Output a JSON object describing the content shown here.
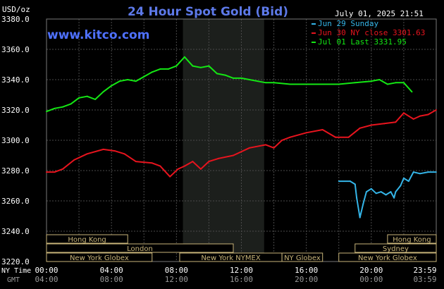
{
  "header": {
    "site": "www.kitco.com",
    "timestamp": "July 01, 2025 21:51",
    "currency_label": "USD/oz"
  },
  "chart_data": {
    "type": "line",
    "title": "24 Hour Spot Gold (Bid)",
    "ylim": [
      3220,
      3380
    ],
    "yticks": [
      "3380.0",
      "3360.0",
      "3340.0",
      "3320.0",
      "3300.0",
      "3280.0",
      "3260.0",
      "3240.0",
      "3220.0"
    ],
    "x_row1_label": "NY Time",
    "x_row2_label": "GMT",
    "x_ticks_ny": [
      "00:00",
      "04:00",
      "08:00",
      "12:00",
      "16:00",
      "20:00",
      "23:59"
    ],
    "x_ticks_gmt": [
      "04:00",
      "08:00",
      "12:00",
      "16:00",
      "20:00",
      "00:00",
      "03:59"
    ],
    "shaded_range_hours": [
      8.4,
      13.4
    ],
    "series": [
      {
        "name": "Jun 29 Sunday",
        "color": "#34b5e8",
        "x": [
          18.0,
          18.7,
          19.0,
          19.1,
          19.3,
          19.5,
          19.7,
          20.0,
          20.3,
          20.6,
          20.9,
          21.2,
          21.4,
          21.5,
          21.8,
          22.0,
          22.3,
          22.6,
          23.0,
          23.5,
          23.99
        ],
        "y": [
          3273,
          3273,
          3271,
          3262,
          3249,
          3258,
          3266,
          3268,
          3265,
          3266,
          3264,
          3266,
          3262,
          3266,
          3270,
          3275,
          3273,
          3279,
          3278,
          3279,
          3279
        ]
      },
      {
        "name": "Jun 30 NY close 3301.63",
        "color": "#e8141e",
        "x": [
          0,
          0.5,
          1.0,
          1.7,
          2.5,
          3.5,
          4.2,
          4.8,
          5.5,
          6.5,
          7.0,
          7.6,
          8.1,
          8.5,
          9.0,
          9.5,
          10.0,
          10.6,
          11.5,
          12.5,
          13.5,
          14.0,
          14.5,
          15.0,
          16.0,
          17.0,
          17.8,
          18.6,
          19.3,
          20.0,
          20.8,
          21.5,
          22.0,
          22.6,
          23.0,
          23.5,
          23.99
        ],
        "y": [
          3279,
          3279,
          3281,
          3287,
          3291,
          3294,
          3293,
          3291,
          3286,
          3285,
          3283,
          3276,
          3281,
          3283,
          3286,
          3281,
          3286,
          3288,
          3290,
          3295,
          3297,
          3295,
          3300,
          3302,
          3305,
          3307,
          3302,
          3302,
          3308,
          3310,
          3311,
          3312,
          3318,
          3314,
          3316,
          3317,
          3320
        ]
      },
      {
        "name": "Jul 01 Last 3331.95",
        "color": "#14e814",
        "x": [
          0,
          0.5,
          1.0,
          1.5,
          2.0,
          2.5,
          3.0,
          3.5,
          4.0,
          4.5,
          5.0,
          5.5,
          6.0,
          6.5,
          7.0,
          7.5,
          8.0,
          8.5,
          9.0,
          9.5,
          10.0,
          10.5,
          11.0,
          11.5,
          12.0,
          12.5,
          13.0,
          13.5,
          14.0,
          15.0,
          16.0,
          17.0,
          18.0,
          19.0,
          20.0,
          20.5,
          21.0,
          21.5,
          22.0,
          22.5
        ],
        "y": [
          3319,
          3321,
          3322,
          3324,
          3328,
          3329,
          3327,
          3332,
          3336,
          3339,
          3340,
          3339,
          3342,
          3345,
          3347,
          3347,
          3349,
          3355,
          3349,
          3348,
          3349,
          3344,
          3343,
          3341,
          3341,
          3340,
          3339,
          3338,
          3338,
          3337,
          3337,
          3337,
          3337,
          3338,
          3339,
          3340,
          3337,
          3338,
          3338,
          3332
        ]
      }
    ],
    "market_sessions": [
      {
        "label": "Hong Kong",
        "start_h": -1.0,
        "end_h": 5.0,
        "row": 0
      },
      {
        "label": "London",
        "start_h": -1.0,
        "end_h": 11.5,
        "row": 1
      },
      {
        "label": "New York Globex",
        "start_h": -1.0,
        "end_h": 6.5,
        "row": 2
      },
      {
        "label": "New York NYMEX",
        "start_h": 8.2,
        "end_h": 14.5,
        "row": 2
      },
      {
        "label": "NY Globex",
        "start_h": 14.5,
        "end_h": 17.0,
        "row": 2
      },
      {
        "label": "Hong Kong",
        "start_h": 21.0,
        "end_h": 25.0,
        "row": 0
      },
      {
        "label": "Sydney",
        "start_h": 19.0,
        "end_h": 25.0,
        "row": 1
      },
      {
        "label": "New York Globex",
        "start_h": 18.0,
        "end_h": 25.0,
        "row": 2
      }
    ]
  }
}
